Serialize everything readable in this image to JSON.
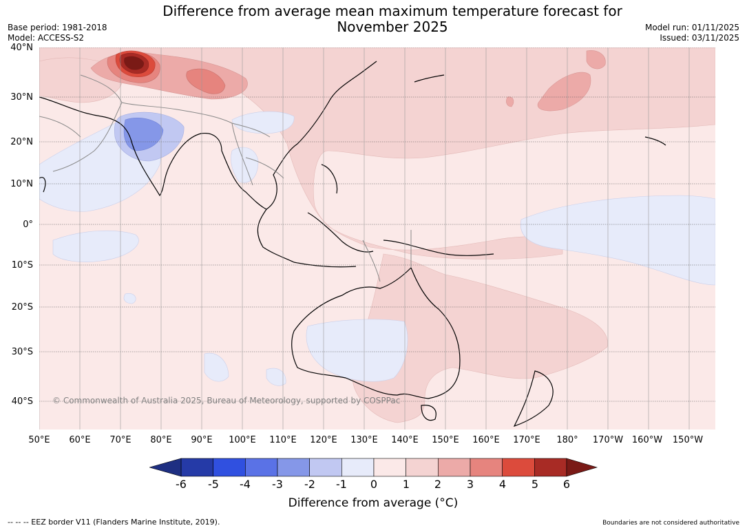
{
  "title": {
    "line1": "Difference from average mean maximum temperature forecast for",
    "line2": "November 2025"
  },
  "meta_left": {
    "base_period": "Base period: 1981-2018",
    "model": "Model: ACCESS-S2"
  },
  "meta_right": {
    "model_run": "Model run: 01/11/2025",
    "issued": "Issued: 03/11/2025"
  },
  "map": {
    "latitude_labels": [
      "40°N",
      "30°N",
      "20°N",
      "10°N",
      "0°",
      "10°S",
      "20°S",
      "30°S",
      "40°S"
    ],
    "longitude_labels": [
      "50°E",
      "60°E",
      "70°E",
      "80°E",
      "90°E",
      "100°E",
      "110°E",
      "120°E",
      "130°E",
      "140°E",
      "150°E",
      "160°E",
      "170°E",
      "180°",
      "170°W",
      "160°W",
      "150°W"
    ],
    "copyright": "© Commonwealth of Australia 2025, Bureau of Meteorology, supported by COSPPac",
    "colors": {
      "ocean_base": "#fbe9e8",
      "anomaly_0_1": "#fbe9e8",
      "anomaly_1_2": "#f4d3d2",
      "anomaly_2_3": "#ecaaa8",
      "anomaly_3_4": "#e6847e",
      "anomaly_4_5": "#dc4b3c",
      "anomaly_5_6": "#a82b25",
      "anomaly_gt6": "#7a1a16",
      "anomaly_m1_0": "#e7ebfa",
      "anomaly_m2_m1": "#c1c8f2",
      "anomaly_m3_m2": "#8597e8",
      "coastline": "#000000",
      "borders": "#888888",
      "gridlines": "#555555"
    }
  },
  "colorbar": {
    "ticks": [
      "-6",
      "-5",
      "-4",
      "-3",
      "-2",
      "-1",
      "0",
      "1",
      "2",
      "3",
      "4",
      "5",
      "6"
    ],
    "colors": [
      "#253aa7",
      "#3050e0",
      "#5a72e6",
      "#8597e8",
      "#c1c8f2",
      "#e7ebfa",
      "#fbe9e8",
      "#f4d3d2",
      "#ecaaa8",
      "#e6847e",
      "#dc4b3c",
      "#a82b25"
    ],
    "under_color": "#1e2f82",
    "over_color": "#7a1a16",
    "label": "Difference from average (°C)"
  },
  "footer": {
    "eez": "--  --  -- EEZ border V11 (Flanders Marine Institute, 2019).",
    "disclaimer": "Boundaries are not considered authoritative"
  }
}
